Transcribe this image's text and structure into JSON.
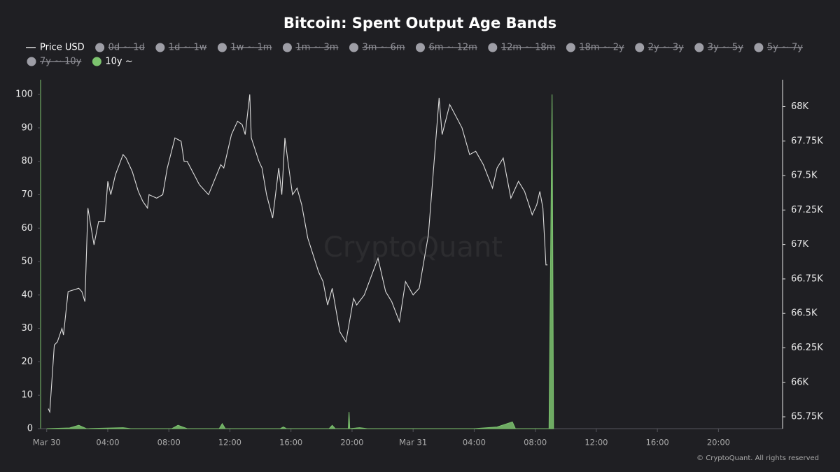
{
  "chart_data": {
    "type": "line",
    "title": "Bitcoin: Spent Output Age Bands",
    "watermark": "CryptoQuant",
    "footer": "© CryptoQuant. All rights reserved",
    "hidden_series": [
      "0d ~ 1d",
      "1d ~ 1w",
      "1w ~ 1m",
      "1m ~ 3m",
      "3m ~ 6m",
      "6m ~ 12m",
      "12m ~ 18m",
      "18m ~ 2y",
      "2y ~ 3y",
      "3y ~ 5y",
      "5y ~ 7y",
      "7y ~ 10y"
    ],
    "hidden_color": "#9e9ea6",
    "xlim": [
      -0.4,
      48.2
    ],
    "xticks": [
      {
        "value": 0,
        "label": "Mar 30"
      },
      {
        "value": 4,
        "label": "04:00"
      },
      {
        "value": 8,
        "label": "08:00"
      },
      {
        "value": 12,
        "label": "12:00"
      },
      {
        "value": 16,
        "label": "16:00"
      },
      {
        "value": 20,
        "label": "20:00"
      },
      {
        "value": 24,
        "label": "Mar 31"
      },
      {
        "value": 28,
        "label": "04:00"
      },
      {
        "value": 32,
        "label": "08:00"
      },
      {
        "value": 36,
        "label": "12:00"
      },
      {
        "value": 40,
        "label": "16:00"
      },
      {
        "value": 44,
        "label": "20:00"
      }
    ],
    "ylim": [
      0,
      104
    ],
    "yticks": [
      0,
      10,
      20,
      30,
      40,
      50,
      60,
      70,
      80,
      90,
      100
    ],
    "y2lim": [
      65664,
      68185
    ],
    "y2ticks": [
      {
        "value": 65750,
        "label": "65.75K"
      },
      {
        "value": 66000,
        "label": "66K"
      },
      {
        "value": 66250,
        "label": "66.25K"
      },
      {
        "value": 66500,
        "label": "66.5K"
      },
      {
        "value": 66750,
        "label": "66.75K"
      },
      {
        "value": 67000,
        "label": "67K"
      },
      {
        "value": 67250,
        "label": "67.25K"
      },
      {
        "value": 67500,
        "label": "67.5K"
      },
      {
        "value": 67750,
        "label": "67.75K"
      },
      {
        "value": 68000,
        "label": "68K"
      }
    ],
    "series": [
      {
        "name": "Price USD",
        "color": "#dcdcdc",
        "axis": "y2",
        "style": "line",
        "x": [
          0.1,
          0.2,
          0.5,
          0.7,
          1.0,
          1.1,
          1.4,
          2.1,
          2.3,
          2.5,
          2.7,
          3.1,
          3.4,
          3.8,
          4.0,
          4.2,
          4.5,
          5.0,
          5.2,
          5.6,
          6.0,
          6.3,
          6.6,
          6.7,
          7.2,
          7.6,
          7.9,
          8.4,
          8.8,
          9.0,
          9.2,
          10.0,
          10.6,
          11.4,
          11.6,
          12.1,
          12.3,
          12.5,
          12.8,
          13.0,
          13.3,
          13.4,
          13.9,
          14.1,
          14.4,
          14.8,
          15.2,
          15.4,
          15.6,
          15.8,
          16.1,
          16.4,
          16.7,
          17.1,
          17.8,
          18.1,
          18.4,
          18.7,
          19.2,
          19.6,
          20.1,
          20.3,
          20.8,
          21.7,
          22.2,
          22.6,
          23.1,
          23.5,
          24.0,
          24.4,
          25.0,
          25.7,
          25.9,
          26.4,
          27.2,
          27.7,
          28.1,
          28.6,
          29.2,
          29.5,
          29.9,
          30.4,
          30.9,
          31.3,
          31.8,
          32.1,
          32.3,
          32.5,
          32.7,
          32.8
        ],
        "values": [
          65809,
          65785,
          66270,
          66294,
          66391,
          66343,
          66658,
          66682,
          66658,
          66585,
          67264,
          66997,
          67167,
          67167,
          67458,
          67361,
          67506,
          67652,
          67627,
          67530,
          67385,
          67312,
          67264,
          67361,
          67336,
          67361,
          67555,
          67773,
          67749,
          67603,
          67603,
          67434,
          67361,
          67579,
          67555,
          67797,
          67846,
          67894,
          67870,
          67797,
          68088,
          67773,
          67603,
          67555,
          67361,
          67191,
          67555,
          67361,
          67773,
          67603,
          67361,
          67409,
          67288,
          67046,
          66803,
          66731,
          66561,
          66682,
          66367,
          66294,
          66609,
          66561,
          66634,
          66900,
          66658,
          66585,
          66440,
          66731,
          66634,
          66682,
          67070,
          68064,
          67797,
          68015,
          67846,
          67652,
          67676,
          67579,
          67409,
          67555,
          67627,
          67336,
          67458,
          67385,
          67215,
          67288,
          67385,
          67264,
          66852,
          66852
        ]
      },
      {
        "name": "10y ~",
        "color": "#7cc36e",
        "axis": "y",
        "style": "area",
        "x": [
          0,
          1.5,
          2.1,
          2.6,
          5,
          5.5,
          8.2,
          8.6,
          9.2,
          11.3,
          11.5,
          11.7,
          15.3,
          15.5,
          15.7,
          18.5,
          18.7,
          18.9,
          19.75,
          19.8,
          19.85,
          20.5,
          21,
          28,
          29.5,
          30.5,
          30.7,
          32.9,
          33.0,
          33.1,
          33.2
        ],
        "values": [
          0,
          0.2,
          1,
          0,
          0.3,
          0,
          0,
          1,
          0,
          0,
          1.5,
          0,
          0,
          0.5,
          0,
          0,
          1,
          0,
          0,
          5,
          0,
          0.3,
          0,
          0,
          0.5,
          2,
          0,
          0,
          50,
          100,
          0
        ]
      }
    ]
  }
}
